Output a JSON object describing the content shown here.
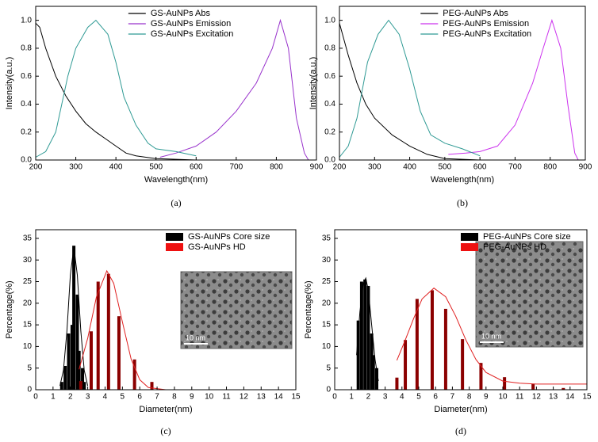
{
  "chart_data": [
    {
      "type": "line",
      "caption": "(a)",
      "x_label": "Wavelength(nm)",
      "y_label": "Intensity(a.u.)",
      "xlim": [
        200,
        900
      ],
      "xticks": [
        200,
        300,
        400,
        500,
        600,
        700,
        800,
        900
      ],
      "ylim": [
        0,
        1.1
      ],
      "yticks": [
        {
          "value": 0,
          "label": "0.0"
        },
        {
          "value": 0.2,
          "label": "0.2"
        },
        {
          "value": 0.4,
          "label": "0.4"
        },
        {
          "value": 0.6,
          "label": "0.6"
        },
        {
          "value": 0.8,
          "label": "0.8"
        },
        {
          "value": 1,
          "label": "1.0"
        }
      ],
      "legend_loc": "upper center",
      "series": [
        {
          "name": "GS-AuNPs Abs",
          "color": "#000000",
          "x": [
            200,
            210,
            225,
            250,
            275,
            300,
            325,
            350,
            375,
            400,
            425,
            450,
            500,
            600,
            700,
            800,
            900
          ],
          "values": [
            0.98,
            0.95,
            0.8,
            0.6,
            0.46,
            0.35,
            0.26,
            0.2,
            0.15,
            0.1,
            0.05,
            0.03,
            0.01,
            0,
            0,
            0,
            0
          ]
        },
        {
          "name": "GS-AuNPs Emission",
          "color": "#9933cc",
          "x": [
            510,
            550,
            600,
            650,
            700,
            750,
            790,
            810,
            830,
            850,
            870,
            880
          ],
          "values": [
            0.02,
            0.05,
            0.1,
            0.2,
            0.35,
            0.55,
            0.8,
            1.0,
            0.8,
            0.3,
            0.05,
            0
          ]
        },
        {
          "name": "GS-AuNPs Excitation",
          "color": "#2f9a94",
          "x": [
            200,
            225,
            250,
            280,
            300,
            330,
            350,
            380,
            400,
            420,
            450,
            480,
            500,
            550,
            600
          ],
          "values": [
            0.02,
            0.06,
            0.2,
            0.6,
            0.8,
            0.95,
            1.0,
            0.9,
            0.7,
            0.45,
            0.25,
            0.12,
            0.08,
            0.06,
            0.03
          ]
        }
      ]
    },
    {
      "type": "line",
      "caption": "(b)",
      "x_label": "Wavelength(nm)",
      "y_label": "Intensity(a.u.)",
      "xlim": [
        200,
        900
      ],
      "xticks": [
        200,
        300,
        400,
        500,
        600,
        700,
        800,
        900
      ],
      "ylim": [
        0,
        1.1
      ],
      "yticks": [
        {
          "value": 0,
          "label": "0.0"
        },
        {
          "value": 0.2,
          "label": "0.2"
        },
        {
          "value": 0.4,
          "label": "0.4"
        },
        {
          "value": 0.6,
          "label": "0.6"
        },
        {
          "value": 0.8,
          "label": "0.8"
        },
        {
          "value": 1,
          "label": "1.0"
        }
      ],
      "legend_loc": "upper center",
      "series": [
        {
          "name": "PEG-AuNPs Abs",
          "color": "#000000",
          "x": [
            200,
            225,
            250,
            275,
            300,
            350,
            400,
            450,
            500,
            600,
            700,
            800,
            900
          ],
          "values": [
            0.98,
            0.75,
            0.55,
            0.4,
            0.3,
            0.18,
            0.1,
            0.04,
            0.01,
            0,
            0,
            0,
            0
          ]
        },
        {
          "name": "PEG-AuNPs Emission",
          "color": "#cc33ee",
          "x": [
            510,
            560,
            600,
            650,
            700,
            750,
            780,
            805,
            830,
            850,
            870,
            880
          ],
          "values": [
            0.04,
            0.05,
            0.06,
            0.1,
            0.25,
            0.55,
            0.8,
            1.0,
            0.8,
            0.4,
            0.05,
            0
          ]
        },
        {
          "name": "PEG-AuNPs Excitation",
          "color": "#2f9a94",
          "x": [
            200,
            225,
            250,
            280,
            310,
            340,
            370,
            400,
            430,
            460,
            500,
            550,
            600
          ],
          "values": [
            0.02,
            0.1,
            0.3,
            0.7,
            0.9,
            1.0,
            0.9,
            0.65,
            0.35,
            0.18,
            0.12,
            0.08,
            0.03
          ]
        }
      ]
    },
    {
      "type": "bar",
      "caption": "(c)",
      "x_label": "Diameter(nm)",
      "y_label": "Percentage(%)",
      "inset_label": "10 nm",
      "xlim": [
        0,
        15
      ],
      "xticks": [
        0,
        1,
        2,
        3,
        4,
        5,
        6,
        7,
        8,
        9,
        10,
        11,
        12,
        13,
        14,
        15
      ],
      "ylim": [
        0,
        37
      ],
      "yticks": [
        0,
        5,
        10,
        15,
        20,
        25,
        30,
        35
      ],
      "legend_loc": "upper center",
      "series": [
        {
          "name": "GS-AuNPs Core size",
          "color": "#000000",
          "kind": "bar",
          "x": [
            1.5,
            1.7,
            1.9,
            2.1,
            2.2,
            2.4,
            2.5,
            2.7,
            2.8
          ],
          "values": [
            1.8,
            5.5,
            13,
            15,
            33.3,
            22,
            9,
            5,
            1.8
          ]
        },
        {
          "name": "GS-AuNPs HD",
          "color": "#8b0000",
          "kind": "bar",
          "x": [
            2.6,
            3.2,
            3.6,
            4.2,
            4.8,
            5.7,
            6.7
          ],
          "values": [
            2,
            13.5,
            25,
            26.8,
            17,
            7,
            1.8
          ]
        },
        {
          "color": "#000000",
          "kind": "line",
          "x": [
            1.4,
            1.6,
            1.8,
            2.0,
            2.2,
            2.4,
            2.6,
            2.8,
            3.0
          ],
          "values": [
            0.9,
            4.5,
            13.6,
            26.5,
            33,
            26.5,
            13.6,
            4.5,
            0.9
          ]
        },
        {
          "color": "#e02020",
          "kind": "line",
          "x": [
            2.5,
            3,
            3.5,
            4.1,
            4.5,
            5,
            5.5,
            6,
            6.5,
            7.5
          ],
          "values": [
            4.7,
            11.9,
            21.4,
            27.5,
            24.6,
            15.7,
            7.1,
            2.3,
            0.5,
            0
          ]
        }
      ]
    },
    {
      "type": "bar",
      "caption": "(d)",
      "x_label": "Diameter(nm)",
      "y_label": "Percentage(%)",
      "inset_label": "10 nm",
      "xlim": [
        0,
        15
      ],
      "xticks": [
        0,
        1,
        2,
        3,
        4,
        5,
        6,
        7,
        8,
        9,
        10,
        11,
        12,
        13,
        14,
        15
      ],
      "ylim": [
        0,
        37
      ],
      "yticks": [
        0,
        5,
        10,
        15,
        20,
        25,
        30,
        35
      ],
      "legend_loc": "upper center",
      "series": [
        {
          "name": "PEG-AuNPs Core size",
          "color": "#000000",
          "kind": "bar",
          "x": [
            1.4,
            1.6,
            1.8,
            2.0,
            2.2,
            2.3,
            2.5
          ],
          "values": [
            16,
            25,
            25.5,
            24,
            13,
            8,
            5
          ]
        },
        {
          "name": "PEG-AuNPs HD",
          "color": "#8b0000",
          "kind": "bar",
          "x": [
            3.7,
            4.2,
            4.9,
            5.8,
            6.6,
            7.6,
            8.7,
            10.1,
            11.8,
            13.6
          ],
          "values": [
            2.8,
            11.5,
            21,
            23,
            18.7,
            11.7,
            6.2,
            2.9,
            1.3,
            0.4
          ]
        },
        {
          "color": "#000000",
          "kind": "line",
          "x": [
            1.3,
            1.5,
            1.7,
            1.85,
            2.0,
            2.2,
            2.4,
            2.6
          ],
          "values": [
            8,
            18,
            24.5,
            25.8,
            23,
            15,
            7,
            2
          ]
        },
        {
          "color": "#e02020",
          "kind": "line",
          "x": [
            3.7,
            4.2,
            4.7,
            5.2,
            5.9,
            6.6,
            7.2,
            7.8,
            8.4,
            9,
            10,
            11,
            12,
            15
          ],
          "values": [
            6.8,
            11.5,
            16.5,
            21,
            23.5,
            21.5,
            17,
            11.5,
            7,
            4,
            2,
            1.5,
            1.3,
            1.3
          ]
        }
      ]
    }
  ]
}
